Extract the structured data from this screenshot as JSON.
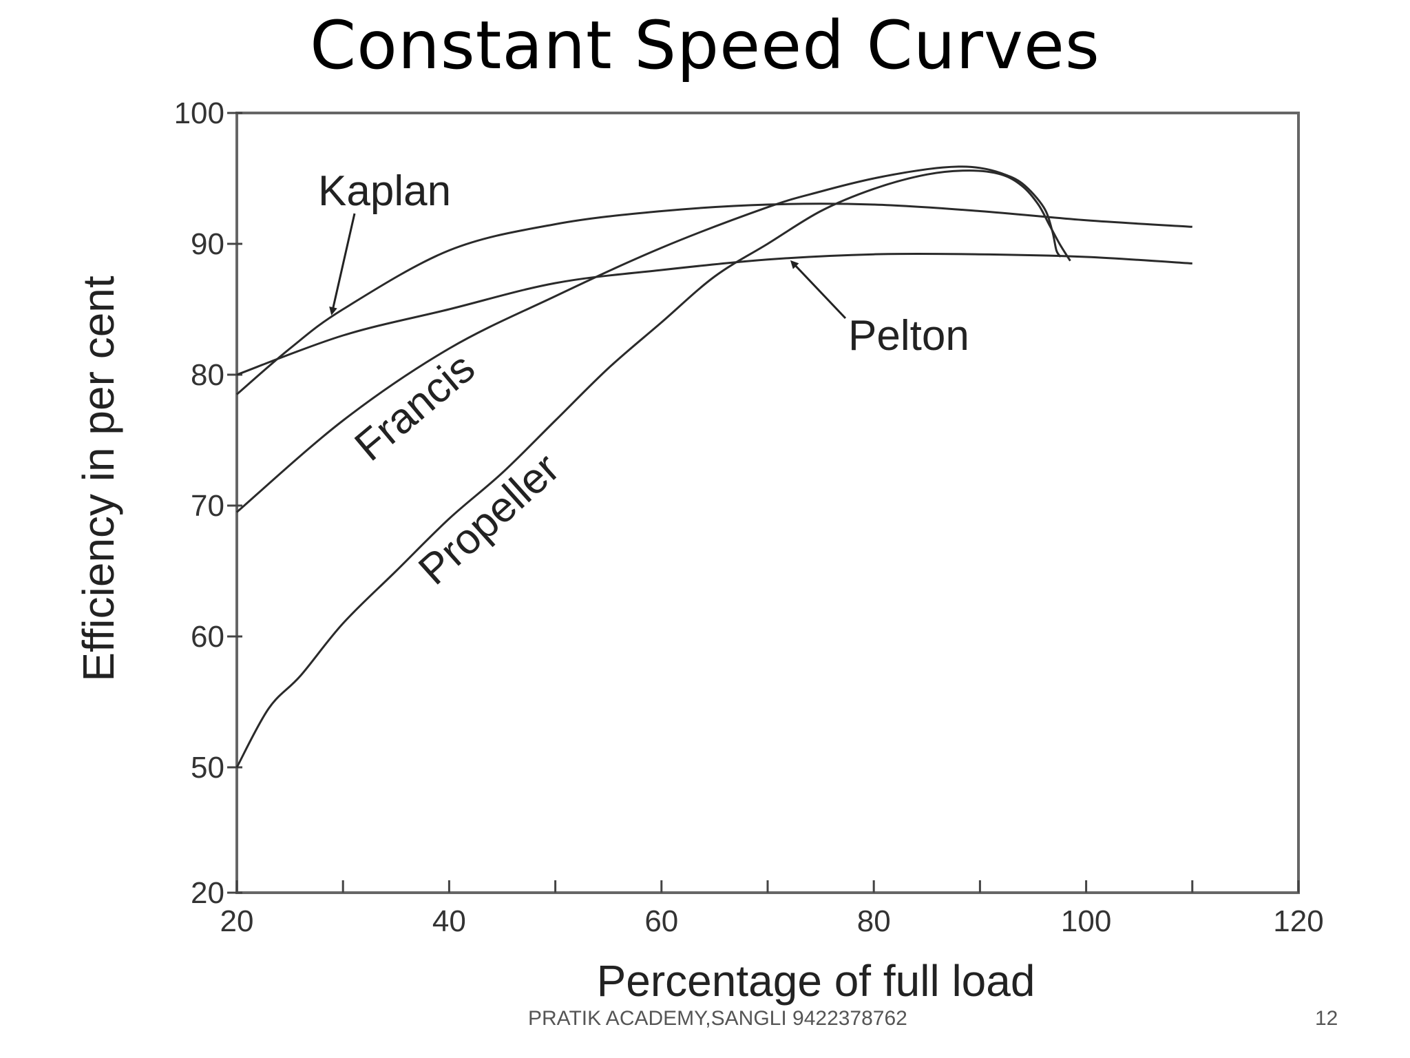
{
  "slide": {
    "title": "Constant Speed Curves",
    "footer": "PRATIK ACADEMY,SANGLI 9422378762",
    "page_number": "12"
  },
  "chart_data": {
    "type": "line",
    "xlabel": "Percentage of full load",
    "ylabel": "Efficiency in per cent",
    "xlim": [
      20,
      120
    ],
    "x_ticks": [
      20,
      40,
      60,
      80,
      100,
      120
    ],
    "x_tick_labels": [
      "20",
      "40",
      "60",
      "80",
      "100",
      "120"
    ],
    "y_ticks": [
      20,
      50,
      60,
      70,
      80,
      90,
      100
    ],
    "y_tick_labels": [
      "20",
      "50",
      "60",
      "70",
      "80",
      "90",
      "100"
    ],
    "grid": false,
    "series": [
      {
        "name": "Kaplan",
        "x": [
          20,
          25,
          30,
          40,
          50,
          60,
          70,
          80,
          90,
          100,
          110
        ],
        "y": [
          78.5,
          82,
          85,
          89.5,
          91.5,
          92.5,
          93,
          93,
          92.5,
          91.8,
          91.3
        ]
      },
      {
        "name": "Pelton",
        "x": [
          20,
          30,
          40,
          50,
          60,
          70,
          80,
          90,
          100,
          110
        ],
        "y": [
          80,
          83,
          85,
          87,
          88,
          88.8,
          89.2,
          89.2,
          89,
          88.5
        ]
      },
      {
        "name": "Francis",
        "x": [
          20,
          30,
          40,
          50,
          60,
          70,
          75,
          80,
          85,
          88,
          90,
          92,
          94,
          96,
          96.8,
          97.2,
          97.6
        ],
        "y": [
          69.5,
          76.5,
          82,
          86,
          89.7,
          92.8,
          94,
          95,
          95.7,
          95.9,
          95.8,
          95.4,
          94.6,
          92.8,
          91,
          89.5,
          89
        ]
      },
      {
        "name": "Propeller",
        "x": [
          20,
          23,
          26,
          30,
          35,
          40,
          45,
          50,
          55,
          60,
          65,
          70,
          75,
          80,
          85,
          89,
          92,
          94,
          95.5,
          96.5,
          97.5,
          98.5
        ],
        "y": [
          50,
          54.5,
          57,
          61,
          65,
          69,
          72.5,
          76.5,
          80.5,
          84,
          87.5,
          90,
          92.5,
          94.2,
          95.3,
          95.6,
          95.3,
          94.4,
          93,
          91.5,
          90,
          88.7
        ]
      }
    ],
    "annotations": [
      "Kaplan",
      "Pelton",
      "Francis",
      "Propeller"
    ]
  }
}
